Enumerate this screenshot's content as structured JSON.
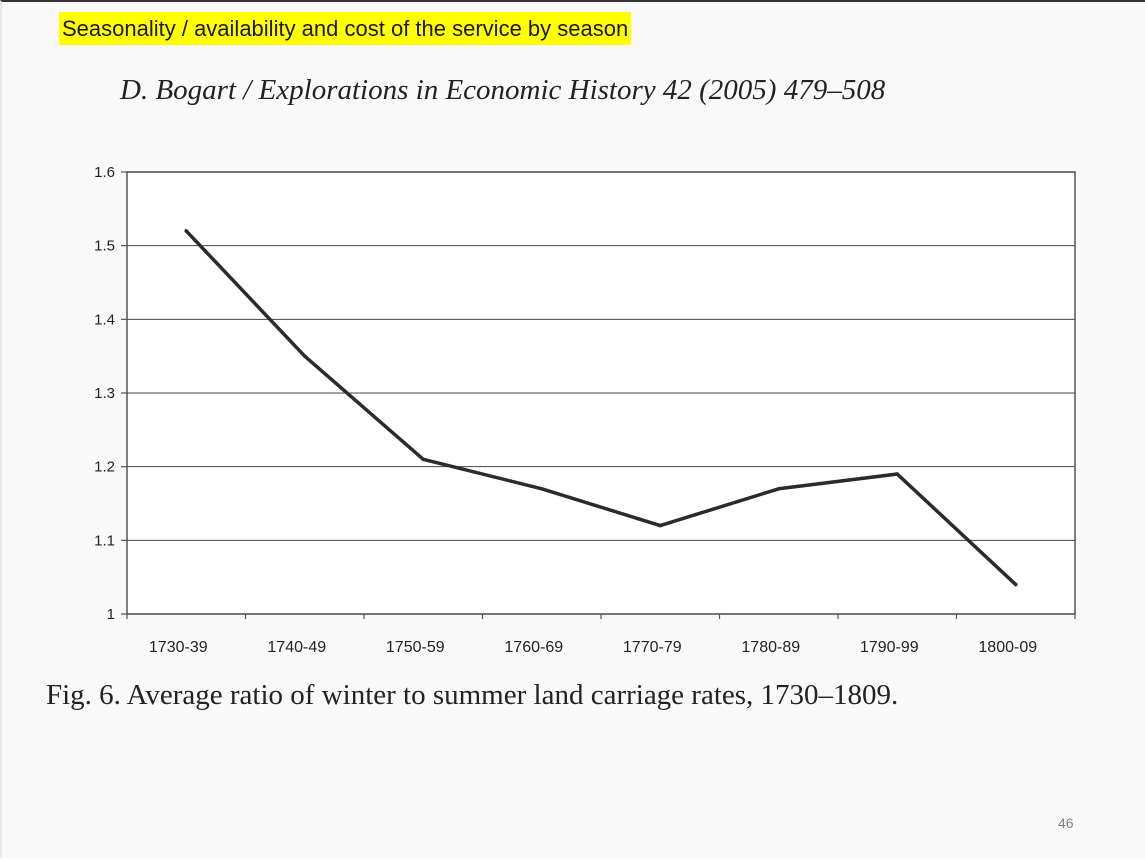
{
  "slide": {
    "title": "Seasonality / availability and cost of the service by season",
    "citation": "D. Bogart / Explorations in Economic History 42 (2005) 479–508",
    "caption": "Fig. 6. Average ratio of winter to summer land carriage rates, 1730–1809.",
    "page_number": "46"
  },
  "colors": {
    "highlight": "#ffff00",
    "line": "#2b2b2b",
    "grid": "#444444"
  },
  "chart_data": {
    "type": "line",
    "title": "",
    "xlabel": "",
    "ylabel": "",
    "categories": [
      "1730-39",
      "1740-49",
      "1750-59",
      "1760-69",
      "1770-79",
      "1780-89",
      "1790-99",
      "1800-09"
    ],
    "series": [
      {
        "values": [
          1.52,
          1.35,
          1.21,
          1.17,
          1.12,
          1.17,
          1.19,
          1.04
        ]
      }
    ],
    "ylim": [
      1,
      1.6
    ],
    "yticks": [
      "1",
      "1.1",
      "1.2",
      "1.3",
      "1.4",
      "1.5",
      "1.6"
    ],
    "grid": true,
    "legend": "none"
  }
}
